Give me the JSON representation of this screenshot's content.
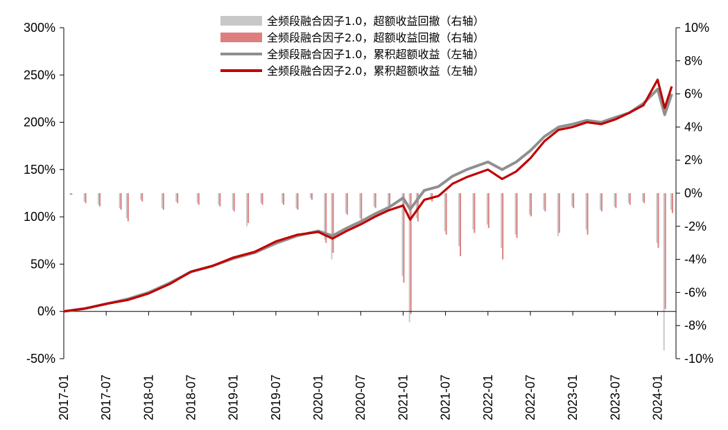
{
  "chart_data": {
    "type": "line",
    "title": "",
    "xlabel": "",
    "ylabel": "",
    "x_ticks": [
      "2017-01",
      "2017-07",
      "2018-01",
      "2018-07",
      "2019-01",
      "2019-07",
      "2020-01",
      "2020-07",
      "2021-01",
      "2021-07",
      "2022-01",
      "2022-07",
      "2023-01",
      "2023-07",
      "2024-01"
    ],
    "y_left": {
      "range": [
        -50,
        300
      ],
      "ticks": [
        -50,
        0,
        50,
        100,
        150,
        200,
        250,
        300
      ],
      "tick_labels": [
        "-50%",
        "0%",
        "50%",
        "100%",
        "150%",
        "200%",
        "250%",
        "300%"
      ]
    },
    "y_right": {
      "range": [
        -10,
        10
      ],
      "ticks": [
        -10,
        -8,
        -6,
        -4,
        -2,
        0,
        2,
        4,
        6,
        8,
        10
      ],
      "tick_labels": [
        "-10%",
        "-8%",
        "-6%",
        "-4%",
        "-2%",
        "0%",
        "2%",
        "4%",
        "6%",
        "8%",
        "10%"
      ]
    },
    "legend_position": "top-center",
    "colors": {
      "v1": "#8f8f8f",
      "v2": "#c00000",
      "dd1": "#c8c8c8",
      "dd2": "#de7f7f"
    },
    "series": [
      {
        "name": "全频段融合因子1.0，超额收益回撤（右轴）",
        "kind": "bar",
        "axis": "right",
        "color": "#c8c8c8",
        "points": [
          [
            "2017-02",
            -0.1
          ],
          [
            "2017-04",
            -0.5
          ],
          [
            "2017-06",
            -0.7
          ],
          [
            "2017-09",
            -0.9
          ],
          [
            "2017-10",
            -1.5
          ],
          [
            "2017-12",
            -0.4
          ],
          [
            "2018-03",
            -0.9
          ],
          [
            "2018-05",
            -0.5
          ],
          [
            "2018-08",
            -0.6
          ],
          [
            "2018-11",
            -0.7
          ],
          [
            "2019-01",
            -1.0
          ],
          [
            "2019-03",
            -2.0
          ],
          [
            "2019-05",
            -0.6
          ],
          [
            "2019-08",
            -0.6
          ],
          [
            "2019-10",
            -0.9
          ],
          [
            "2019-12",
            -0.3
          ],
          [
            "2020-02",
            -2.8
          ],
          [
            "2020-03",
            -4.0
          ],
          [
            "2020-05",
            -1.2
          ],
          [
            "2020-07",
            -1.5
          ],
          [
            "2020-09",
            -0.8
          ],
          [
            "2020-11",
            -0.8
          ],
          [
            "2021-01",
            -5.0
          ],
          [
            "2021-02",
            -7.8
          ],
          [
            "2021-03",
            -1.5
          ],
          [
            "2021-05",
            -0.4
          ],
          [
            "2021-07",
            -2.3
          ],
          [
            "2021-09",
            -3.2
          ],
          [
            "2021-11",
            -2.2
          ],
          [
            "2022-01",
            -1.9
          ],
          [
            "2022-03",
            -3.3
          ],
          [
            "2022-05",
            -2.5
          ],
          [
            "2022-07",
            -1.3
          ],
          [
            "2022-09",
            -1.0
          ],
          [
            "2022-11",
            -2.6
          ],
          [
            "2023-01",
            -0.8
          ],
          [
            "2023-03",
            -2.2
          ],
          [
            "2023-05",
            -1.0
          ],
          [
            "2023-07",
            -0.8
          ],
          [
            "2023-09",
            -0.6
          ],
          [
            "2023-11",
            -0.5
          ],
          [
            "2024-01",
            -3.0
          ],
          [
            "2024-02",
            -9.5
          ],
          [
            "2024-03",
            -1.0
          ]
        ]
      },
      {
        "name": "全频段融合因子2.0，超额收益回撤（右轴）",
        "kind": "bar",
        "axis": "right",
        "color": "#de7f7f",
        "points": [
          [
            "2017-02",
            -0.1
          ],
          [
            "2017-04",
            -0.6
          ],
          [
            "2017-06",
            -0.8
          ],
          [
            "2017-09",
            -1.0
          ],
          [
            "2017-10",
            -1.7
          ],
          [
            "2017-12",
            -0.5
          ],
          [
            "2018-03",
            -1.0
          ],
          [
            "2018-05",
            -0.6
          ],
          [
            "2018-08",
            -0.7
          ],
          [
            "2018-11",
            -0.8
          ],
          [
            "2019-01",
            -1.1
          ],
          [
            "2019-03",
            -1.8
          ],
          [
            "2019-05",
            -0.7
          ],
          [
            "2019-08",
            -0.7
          ],
          [
            "2019-10",
            -1.0
          ],
          [
            "2019-12",
            -0.4
          ],
          [
            "2020-02",
            -3.0
          ],
          [
            "2020-03",
            -3.6
          ],
          [
            "2020-05",
            -1.3
          ],
          [
            "2020-07",
            -1.6
          ],
          [
            "2020-09",
            -0.9
          ],
          [
            "2020-11",
            -0.9
          ],
          [
            "2021-01",
            -5.4
          ],
          [
            "2021-02",
            -7.3
          ],
          [
            "2021-03",
            -1.7
          ],
          [
            "2021-05",
            -0.5
          ],
          [
            "2021-07",
            -2.5
          ],
          [
            "2021-09",
            -3.8
          ],
          [
            "2021-11",
            -2.4
          ],
          [
            "2022-01",
            -2.1
          ],
          [
            "2022-03",
            -4.0
          ],
          [
            "2022-05",
            -2.7
          ],
          [
            "2022-07",
            -1.4
          ],
          [
            "2022-09",
            -1.1
          ],
          [
            "2022-11",
            -2.4
          ],
          [
            "2023-01",
            -0.9
          ],
          [
            "2023-03",
            -2.5
          ],
          [
            "2023-05",
            -1.1
          ],
          [
            "2023-07",
            -0.9
          ],
          [
            "2023-09",
            -0.7
          ],
          [
            "2023-11",
            -0.6
          ],
          [
            "2024-01",
            -3.3
          ],
          [
            "2024-02",
            -7.0
          ],
          [
            "2024-03",
            -1.2
          ]
        ]
      },
      {
        "name": "全频段融合因子1.0，累积超额收益（左轴）",
        "kind": "line",
        "axis": "left",
        "color": "#8f8f8f",
        "points": [
          [
            "2017-01",
            0
          ],
          [
            "2017-04",
            3
          ],
          [
            "2017-07",
            8
          ],
          [
            "2017-10",
            13
          ],
          [
            "2018-01",
            20
          ],
          [
            "2018-04",
            30
          ],
          [
            "2018-07",
            42
          ],
          [
            "2018-10",
            48
          ],
          [
            "2019-01",
            56
          ],
          [
            "2019-04",
            62
          ],
          [
            "2019-07",
            72
          ],
          [
            "2019-10",
            80
          ],
          [
            "2020-01",
            85
          ],
          [
            "2020-03",
            80
          ],
          [
            "2020-05",
            88
          ],
          [
            "2020-07",
            95
          ],
          [
            "2020-09",
            103
          ],
          [
            "2020-11",
            110
          ],
          [
            "2021-01",
            120
          ],
          [
            "2021-02",
            108
          ],
          [
            "2021-04",
            128
          ],
          [
            "2021-06",
            132
          ],
          [
            "2021-08",
            143
          ],
          [
            "2021-10",
            150
          ],
          [
            "2022-01",
            158
          ],
          [
            "2022-03",
            150
          ],
          [
            "2022-05",
            158
          ],
          [
            "2022-07",
            170
          ],
          [
            "2022-09",
            185
          ],
          [
            "2022-11",
            195
          ],
          [
            "2023-01",
            198
          ],
          [
            "2023-03",
            202
          ],
          [
            "2023-05",
            200
          ],
          [
            "2023-07",
            205
          ],
          [
            "2023-09",
            210
          ],
          [
            "2023-11",
            220
          ],
          [
            "2024-01",
            235
          ],
          [
            "2024-02",
            208
          ],
          [
            "2024-03",
            230
          ]
        ]
      },
      {
        "name": "全频段融合因子2.0，累积超额收益（左轴）",
        "kind": "line",
        "axis": "left",
        "color": "#c00000",
        "points": [
          [
            "2017-01",
            0
          ],
          [
            "2017-04",
            3
          ],
          [
            "2017-07",
            8
          ],
          [
            "2017-10",
            12
          ],
          [
            "2018-01",
            19
          ],
          [
            "2018-04",
            29
          ],
          [
            "2018-07",
            42
          ],
          [
            "2018-10",
            48
          ],
          [
            "2019-01",
            57
          ],
          [
            "2019-04",
            63
          ],
          [
            "2019-07",
            74
          ],
          [
            "2019-10",
            81
          ],
          [
            "2020-01",
            84
          ],
          [
            "2020-03",
            77
          ],
          [
            "2020-05",
            85
          ],
          [
            "2020-07",
            92
          ],
          [
            "2020-09",
            100
          ],
          [
            "2020-11",
            107
          ],
          [
            "2021-01",
            112
          ],
          [
            "2021-02",
            97
          ],
          [
            "2021-04",
            118
          ],
          [
            "2021-06",
            122
          ],
          [
            "2021-08",
            135
          ],
          [
            "2021-10",
            142
          ],
          [
            "2022-01",
            150
          ],
          [
            "2022-03",
            140
          ],
          [
            "2022-05",
            148
          ],
          [
            "2022-07",
            162
          ],
          [
            "2022-09",
            180
          ],
          [
            "2022-11",
            192
          ],
          [
            "2023-01",
            195
          ],
          [
            "2023-03",
            200
          ],
          [
            "2023-05",
            198
          ],
          [
            "2023-07",
            203
          ],
          [
            "2023-09",
            210
          ],
          [
            "2023-11",
            218
          ],
          [
            "2024-01",
            245
          ],
          [
            "2024-02",
            215
          ],
          [
            "2024-03",
            238
          ]
        ]
      }
    ]
  }
}
